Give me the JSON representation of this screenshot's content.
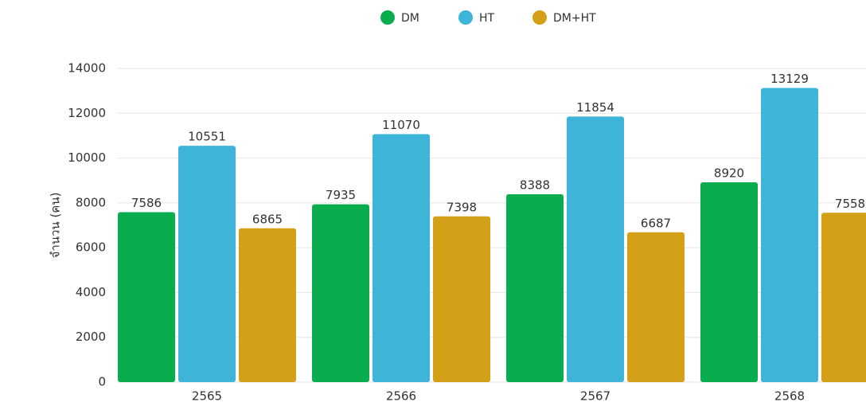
{
  "chart_data": {
    "type": "bar",
    "y_label": "จำนวน (คน)",
    "categories": [
      "2565",
      "2566",
      "2567",
      "2568"
    ],
    "series": [
      {
        "name": "DM",
        "color": "#0aad4e",
        "values": [
          7586,
          7935,
          8388,
          8920
        ]
      },
      {
        "name": "HT",
        "color": "#3db4d8",
        "values": [
          10551,
          11070,
          11854,
          13129
        ]
      },
      {
        "name": "DM+HT",
        "color": "#d4a017",
        "values": [
          6865,
          7398,
          6687,
          7558
        ]
      }
    ],
    "ylim": [
      0,
      14000
    ],
    "yticks": [
      0,
      2000,
      4000,
      6000,
      8000,
      10000,
      12000,
      14000
    ],
    "grid": true,
    "legend": "top"
  }
}
